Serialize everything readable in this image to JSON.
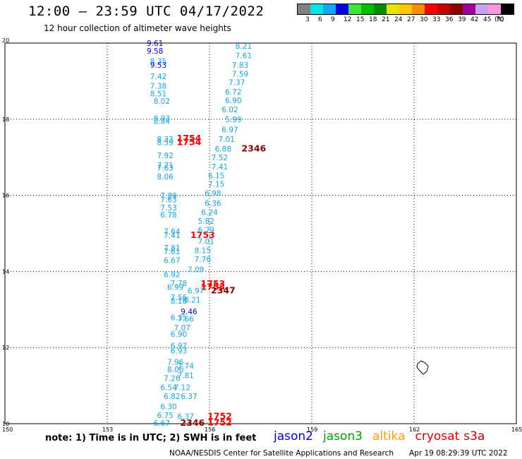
{
  "header": {
    "title": "12:00 — 23:59 UTC 04/17/2022",
    "subtitle": "12 hour collection of altimeter wave heights"
  },
  "legend": {
    "unit": "(ft)",
    "bins": [
      {
        "label": "3",
        "color": "#808080"
      },
      {
        "label": "6",
        "color": "#00e6e6"
      },
      {
        "label": "9",
        "color": "#14a5f5"
      },
      {
        "label": "12",
        "color": "#0000e6"
      },
      {
        "label": "15",
        "color": "#39e639"
      },
      {
        "label": "18",
        "color": "#00c000"
      },
      {
        "label": "21",
        "color": "#008c00"
      },
      {
        "label": "24",
        "color": "#e6e600"
      },
      {
        "label": "27",
        "color": "#ffc800"
      },
      {
        "label": "30",
        "color": "#ff8c00"
      },
      {
        "label": "33",
        "color": "#ff0000"
      },
      {
        "label": "36",
        "color": "#c80000"
      },
      {
        "label": "39",
        "color": "#8c0000"
      },
      {
        "label": "42",
        "color": "#a000a0"
      },
      {
        "label": "45",
        "color": "#c8a0f0"
      },
      {
        "label": "70",
        "color": "#ff96dc"
      },
      {
        "label": "",
        "color": "#000000"
      }
    ]
  },
  "map": {
    "lon_ticks": [
      "150",
      "153",
      "156",
      "159",
      "162",
      "165"
    ],
    "lat_ticks": [
      "20",
      "18",
      "16",
      "14",
      "12",
      "10"
    ],
    "colors": {
      "wave": "#14a5f5",
      "deep": "#0000e6",
      "red": "#ff0000",
      "dark": "#8c0000"
    }
  },
  "observations": [
    {
      "text": "9.61",
      "lon": 154.4,
      "lat": 19.93,
      "c": "deep"
    },
    {
      "text": "9.58",
      "lon": 154.4,
      "lat": 19.72,
      "c": "deep"
    },
    {
      "text": "8.35",
      "lon": 154.5,
      "lat": 19.45,
      "c": "wave"
    },
    {
      "text": "9.53",
      "lon": 154.5,
      "lat": 19.35,
      "c": "deep"
    },
    {
      "text": "7.42",
      "lon": 154.5,
      "lat": 19.05,
      "c": "wave"
    },
    {
      "text": "7.38",
      "lon": 154.5,
      "lat": 18.8,
      "c": "wave"
    },
    {
      "text": "8.51",
      "lon": 154.5,
      "lat": 18.6,
      "c": "wave"
    },
    {
      "text": "8.02",
      "lon": 154.6,
      "lat": 18.4,
      "c": "wave"
    },
    {
      "text": "8.93",
      "lon": 154.6,
      "lat": 17.95,
      "c": "wave"
    },
    {
      "text": "8.84",
      "lon": 154.6,
      "lat": 17.88,
      "c": "wave"
    },
    {
      "text": "8.33",
      "lon": 154.7,
      "lat": 17.4,
      "c": "wave"
    },
    {
      "text": "8.59",
      "lon": 154.7,
      "lat": 17.32,
      "c": "wave"
    },
    {
      "text": "1754",
      "lon": 155.4,
      "lat": 17.42,
      "c": "red"
    },
    {
      "text": "1754",
      "lon": 155.4,
      "lat": 17.32,
      "c": "red"
    },
    {
      "text": "7.92",
      "lon": 154.7,
      "lat": 16.98,
      "c": "wave"
    },
    {
      "text": "7.71",
      "lon": 154.7,
      "lat": 16.72,
      "c": "wave"
    },
    {
      "text": "7.63",
      "lon": 154.7,
      "lat": 16.65,
      "c": "wave"
    },
    {
      "text": "8.06",
      "lon": 154.7,
      "lat": 16.42,
      "c": "wave"
    },
    {
      "text": "7.89",
      "lon": 154.8,
      "lat": 15.92,
      "c": "wave"
    },
    {
      "text": "7.63",
      "lon": 154.8,
      "lat": 15.82,
      "c": "wave"
    },
    {
      "text": "7.53",
      "lon": 154.8,
      "lat": 15.6,
      "c": "wave"
    },
    {
      "text": "6.78",
      "lon": 154.8,
      "lat": 15.42,
      "c": "wave"
    },
    {
      "text": "7.64",
      "lon": 154.9,
      "lat": 14.98,
      "c": "wave"
    },
    {
      "text": "7.41",
      "lon": 154.9,
      "lat": 14.88,
      "c": "wave"
    },
    {
      "text": "1753",
      "lon": 155.8,
      "lat": 14.88,
      "c": "red"
    },
    {
      "text": "7.81",
      "lon": 154.9,
      "lat": 14.55,
      "c": "wave"
    },
    {
      "text": "7.61",
      "lon": 154.9,
      "lat": 14.45,
      "c": "wave"
    },
    {
      "text": "6.67",
      "lon": 154.9,
      "lat": 14.22,
      "c": "wave"
    },
    {
      "text": "6.92",
      "lon": 154.9,
      "lat": 13.85,
      "c": "wave"
    },
    {
      "text": "7.78",
      "lon": 155.1,
      "lat": 13.62,
      "c": "wave"
    },
    {
      "text": "6.99",
      "lon": 155.0,
      "lat": 13.52,
      "c": "wave"
    },
    {
      "text": "1753",
      "lon": 156.1,
      "lat": 13.6,
      "c": "red"
    },
    {
      "text": "1753",
      "lon": 156.1,
      "lat": 13.52,
      "c": "red"
    },
    {
      "text": "2347",
      "lon": 156.4,
      "lat": 13.42,
      "c": "dark"
    },
    {
      "text": "7.56",
      "lon": 155.1,
      "lat": 13.25,
      "c": "wave"
    },
    {
      "text": "8.16",
      "lon": 155.1,
      "lat": 13.15,
      "c": "wave"
    },
    {
      "text": "8.21",
      "lon": 155.5,
      "lat": 13.18,
      "c": "wave"
    },
    {
      "text": "9.46",
      "lon": 155.4,
      "lat": 12.88,
      "c": "deep"
    },
    {
      "text": "6.35",
      "lon": 155.1,
      "lat": 12.72,
      "c": "wave"
    },
    {
      "text": "7.66",
      "lon": 155.3,
      "lat": 12.68,
      "c": "wave"
    },
    {
      "text": "7.07",
      "lon": 155.2,
      "lat": 12.45,
      "c": "wave"
    },
    {
      "text": "6.90",
      "lon": 155.1,
      "lat": 12.28,
      "c": "wave"
    },
    {
      "text": "6.97",
      "lon": 155.1,
      "lat": 11.98,
      "c": "wave"
    },
    {
      "text": "6.93",
      "lon": 155.1,
      "lat": 11.85,
      "c": "wave"
    },
    {
      "text": "7.96",
      "lon": 155.0,
      "lat": 11.55,
      "c": "wave"
    },
    {
      "text": "7.74",
      "lon": 155.3,
      "lat": 11.45,
      "c": "wave"
    },
    {
      "text": "8.06",
      "lon": 155.0,
      "lat": 11.35,
      "c": "wave"
    },
    {
      "text": "7.81",
      "lon": 155.3,
      "lat": 11.2,
      "c": "wave"
    },
    {
      "text": "7.26",
      "lon": 154.9,
      "lat": 11.12,
      "c": "wave"
    },
    {
      "text": "6.54",
      "lon": 154.8,
      "lat": 10.88,
      "c": "wave"
    },
    {
      "text": "7.12",
      "lon": 155.2,
      "lat": 10.88,
      "c": "wave"
    },
    {
      "text": "6.82",
      "lon": 154.9,
      "lat": 10.65,
      "c": "wave"
    },
    {
      "text": "6.37",
      "lon": 155.4,
      "lat": 10.65,
      "c": "wave"
    },
    {
      "text": "6.30",
      "lon": 154.8,
      "lat": 10.38,
      "c": "wave"
    },
    {
      "text": "6.75",
      "lon": 154.7,
      "lat": 10.15,
      "c": "wave"
    },
    {
      "text": "6.37",
      "lon": 155.3,
      "lat": 10.12,
      "c": "wave"
    },
    {
      "text": "6.67",
      "lon": 154.6,
      "lat": 9.94,
      "c": "wave"
    },
    {
      "text": "2346",
      "lon": 155.5,
      "lat": 9.94,
      "c": "dark"
    },
    {
      "text": "1752",
      "lon": 156.3,
      "lat": 10.12,
      "c": "red"
    },
    {
      "text": "1752",
      "lon": 156.3,
      "lat": 9.95,
      "c": "red"
    },
    {
      "text": "8.21",
      "lon": 157.0,
      "lat": 19.85,
      "c": "wave"
    },
    {
      "text": "7.61",
      "lon": 157.0,
      "lat": 19.6,
      "c": "wave"
    },
    {
      "text": "7.83",
      "lon": 156.9,
      "lat": 19.35,
      "c": "wave"
    },
    {
      "text": "7.59",
      "lon": 156.9,
      "lat": 19.12,
      "c": "wave"
    },
    {
      "text": "7.37",
      "lon": 156.8,
      "lat": 18.9,
      "c": "wave"
    },
    {
      "text": "6.72",
      "lon": 156.7,
      "lat": 18.65,
      "c": "wave"
    },
    {
      "text": "6.90",
      "lon": 156.7,
      "lat": 18.42,
      "c": "wave"
    },
    {
      "text": "6.02",
      "lon": 156.6,
      "lat": 18.18,
      "c": "wave"
    },
    {
      "text": "5.99",
      "lon": 156.7,
      "lat": 17.92,
      "c": "wave"
    },
    {
      "text": "6.97",
      "lon": 156.6,
      "lat": 17.65,
      "c": "wave"
    },
    {
      "text": "7.01",
      "lon": 156.5,
      "lat": 17.4,
      "c": "wave"
    },
    {
      "text": "6.88",
      "lon": 156.4,
      "lat": 17.15,
      "c": "wave"
    },
    {
      "text": "2346",
      "lon": 157.3,
      "lat": 17.15,
      "c": "dark"
    },
    {
      "text": "7.52",
      "lon": 156.3,
      "lat": 16.92,
      "c": "wave"
    },
    {
      "text": "7.41",
      "lon": 156.3,
      "lat": 16.68,
      "c": "wave"
    },
    {
      "text": "6.15",
      "lon": 156.2,
      "lat": 16.45,
      "c": "wave"
    },
    {
      "text": "7.15",
      "lon": 156.2,
      "lat": 16.22,
      "c": "wave"
    },
    {
      "text": "6.98",
      "lon": 156.1,
      "lat": 15.98,
      "c": "wave"
    },
    {
      "text": "6.36",
      "lon": 156.1,
      "lat": 15.72,
      "c": "wave"
    },
    {
      "text": "6.24",
      "lon": 156.0,
      "lat": 15.48,
      "c": "wave"
    },
    {
      "text": "5.82",
      "lon": 155.9,
      "lat": 15.25,
      "c": "wave"
    },
    {
      "text": "6.29",
      "lon": 155.9,
      "lat": 15.02,
      "c": "wave"
    },
    {
      "text": "7.01",
      "lon": 155.9,
      "lat": 14.72,
      "c": "wave"
    },
    {
      "text": "8.15",
      "lon": 155.8,
      "lat": 14.48,
      "c": "wave"
    },
    {
      "text": "7.76",
      "lon": 155.8,
      "lat": 14.25,
      "c": "wave"
    },
    {
      "text": "7.09",
      "lon": 155.6,
      "lat": 13.98,
      "c": "wave"
    },
    {
      "text": "6.97",
      "lon": 155.6,
      "lat": 13.42,
      "c": "wave"
    }
  ],
  "footer": {
    "note": "note: 1) Time is in UTC; 2) SWH is in feet",
    "missions": [
      {
        "label": "jason2",
        "color": "#0000e6"
      },
      {
        "label": "jason3",
        "color": "#00a000"
      },
      {
        "label": "altika",
        "color": "#ffa000"
      },
      {
        "label": "cryosat",
        "color": "#e60000"
      },
      {
        "label": "s3a",
        "color": "#c80000"
      }
    ],
    "credit": "NOAA/NESDIS Center for Satellite Applications and Research",
    "timestamp": "Apr 19 08:29:39 UTC 2022"
  }
}
